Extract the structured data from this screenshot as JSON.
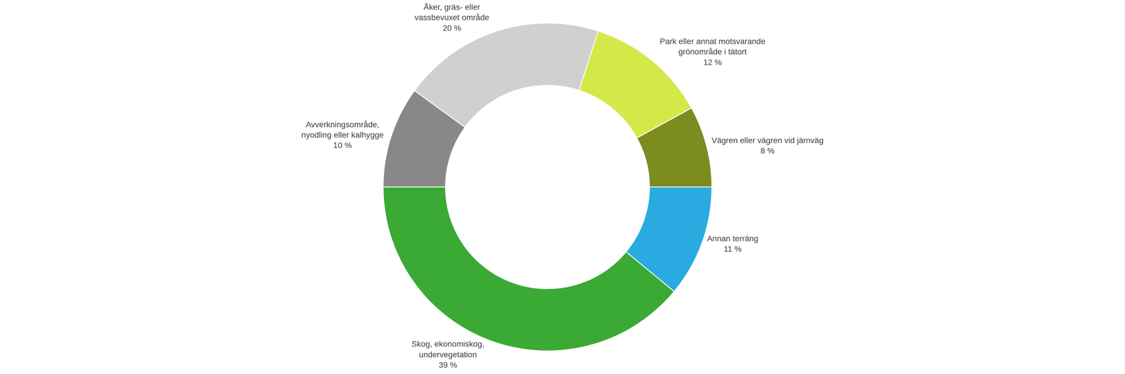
{
  "chart_data": {
    "type": "pie",
    "categories": [
      "Park eller annat motsvarande\ngrönområde i tätort",
      "Vägren eller vägren vid järnväg",
      "Annan terräng",
      "Skog, ekonomiskog,\nundervegetation",
      "Avverkningsområde,\nnyodling eller kalhygge",
      "Åker, gräs- eller\nvassbevuxet område"
    ],
    "values": [
      12,
      8,
      11,
      39,
      10,
      20
    ],
    "value_labels": [
      "12 %",
      "8 %",
      "11 %",
      "39 %",
      "10 %",
      "20 %"
    ],
    "colors": [
      "#d4e84a",
      "#7d8c1f",
      "#29abe2",
      "#3aaa35",
      "#888888",
      "#d0d0d0"
    ],
    "data_labels": true
  }
}
